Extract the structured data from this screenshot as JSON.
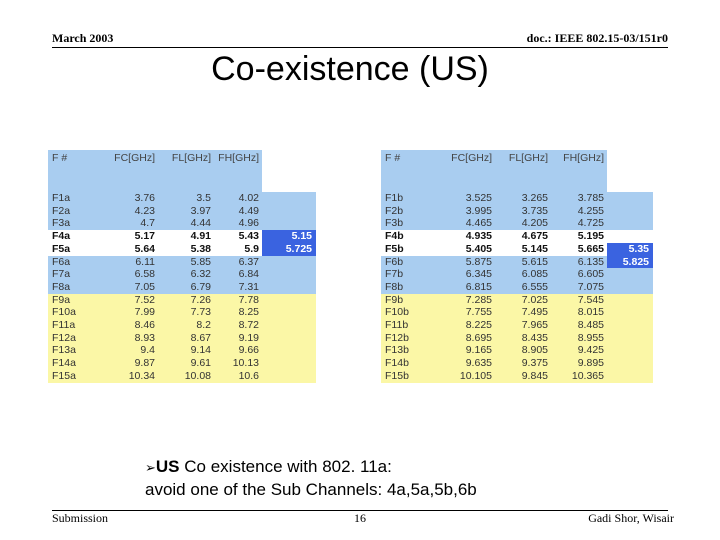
{
  "header": {
    "date": "March 2003",
    "doc_id": "doc.: IEEE 802.15-03/151r0"
  },
  "title": "Co-existence (US)",
  "tables": {
    "left": {
      "columns": [
        "F #",
        "FC[GHz]",
        "FL[GHz]",
        "FH[GHz]"
      ],
      "rows": [
        {
          "f": "F1a",
          "fc": "3.76",
          "fl": "3.5",
          "fh": "4.02",
          "extra": ""
        },
        {
          "f": "F2a",
          "fc": "4.23",
          "fl": "3.97",
          "fh": "4.49",
          "extra": ""
        },
        {
          "f": "F3a",
          "fc": "4.7",
          "fl": "4.44",
          "fh": "4.96",
          "extra": ""
        },
        {
          "f": "F4a",
          "fc": "5.17",
          "fl": "4.91",
          "fh": "5.43",
          "extra": "5.15"
        },
        {
          "f": "F5a",
          "fc": "5.64",
          "fl": "5.38",
          "fh": "5.9",
          "extra": "5.725"
        },
        {
          "f": "F6a",
          "fc": "6.11",
          "fl": "5.85",
          "fh": "6.37",
          "extra": ""
        },
        {
          "f": "F7a",
          "fc": "6.58",
          "fl": "6.32",
          "fh": "6.84",
          "extra": ""
        },
        {
          "f": "F8a",
          "fc": "7.05",
          "fl": "6.79",
          "fh": "7.31",
          "extra": ""
        },
        {
          "f": "F9a",
          "fc": "7.52",
          "fl": "7.26",
          "fh": "7.78",
          "extra": ""
        },
        {
          "f": "F10a",
          "fc": "7.99",
          "fl": "7.73",
          "fh": "8.25",
          "extra": ""
        },
        {
          "f": "F11a",
          "fc": "8.46",
          "fl": "8.2",
          "fh": "8.72",
          "extra": ""
        },
        {
          "f": "F12a",
          "fc": "8.93",
          "fl": "8.67",
          "fh": "9.19",
          "extra": ""
        },
        {
          "f": "F13a",
          "fc": "9.4",
          "fl": "9.14",
          "fh": "9.66",
          "extra": ""
        },
        {
          "f": "F14a",
          "fc": "9.87",
          "fl": "9.61",
          "fh": "10.13",
          "extra": ""
        },
        {
          "f": "F15a",
          "fc": "10.34",
          "fl": "10.08",
          "fh": "10.6",
          "extra": ""
        }
      ]
    },
    "right": {
      "columns": [
        "F #",
        "FC[GHz]",
        "FL[GHz]",
        "FH[GHz]"
      ],
      "rows": [
        {
          "f": "F1b",
          "fc": "3.525",
          "fl": "3.265",
          "fh": "3.785",
          "extra": ""
        },
        {
          "f": "F2b",
          "fc": "3.995",
          "fl": "3.735",
          "fh": "4.255",
          "extra": ""
        },
        {
          "f": "F3b",
          "fc": "4.465",
          "fl": "4.205",
          "fh": "4.725",
          "extra": ""
        },
        {
          "f": "F4b",
          "fc": "4.935",
          "fl": "4.675",
          "fh": "5.195",
          "extra": ""
        },
        {
          "f": "F5b",
          "fc": "5.405",
          "fl": "5.145",
          "fh": "5.665",
          "extra": "5.35"
        },
        {
          "f": "F6b",
          "fc": "5.875",
          "fl": "5.615",
          "fh": "6.135",
          "extra": "5.825"
        },
        {
          "f": "F7b",
          "fc": "6.345",
          "fl": "6.085",
          "fh": "6.605",
          "extra": ""
        },
        {
          "f": "F8b",
          "fc": "6.815",
          "fl": "6.555",
          "fh": "7.075",
          "extra": ""
        },
        {
          "f": "F9b",
          "fc": "7.285",
          "fl": "7.025",
          "fh": "7.545",
          "extra": ""
        },
        {
          "f": "F10b",
          "fc": "7.755",
          "fl": "7.495",
          "fh": "8.015",
          "extra": ""
        },
        {
          "f": "F11b",
          "fc": "8.225",
          "fl": "7.965",
          "fh": "8.485",
          "extra": ""
        },
        {
          "f": "F12b",
          "fc": "8.695",
          "fl": "8.435",
          "fh": "8.955",
          "extra": ""
        },
        {
          "f": "F13b",
          "fc": "9.165",
          "fl": "8.905",
          "fh": "9.425",
          "extra": ""
        },
        {
          "f": "F14b",
          "fc": "9.635",
          "fl": "9.375",
          "fh": "9.895",
          "extra": ""
        },
        {
          "f": "F15b",
          "fc": "10.105",
          "fl": "9.845",
          "fh": "10.365",
          "extra": ""
        }
      ]
    }
  },
  "bullet": {
    "icon": "arrow-bullet-icon",
    "strong": "US",
    "line1": " Co existence with 802. 11a:",
    "line2": "avoid one of the Sub Channels: 4a,5a,5b,6b"
  },
  "footer": {
    "left": "Submission",
    "page": "16",
    "right": "Gadi Shor, Wisair"
  },
  "colors": {
    "blue_band": "#a9cdf0",
    "white_band": "#ffffff",
    "yellow_band": "#fbf7a6",
    "highlight": "#3a63e0"
  }
}
